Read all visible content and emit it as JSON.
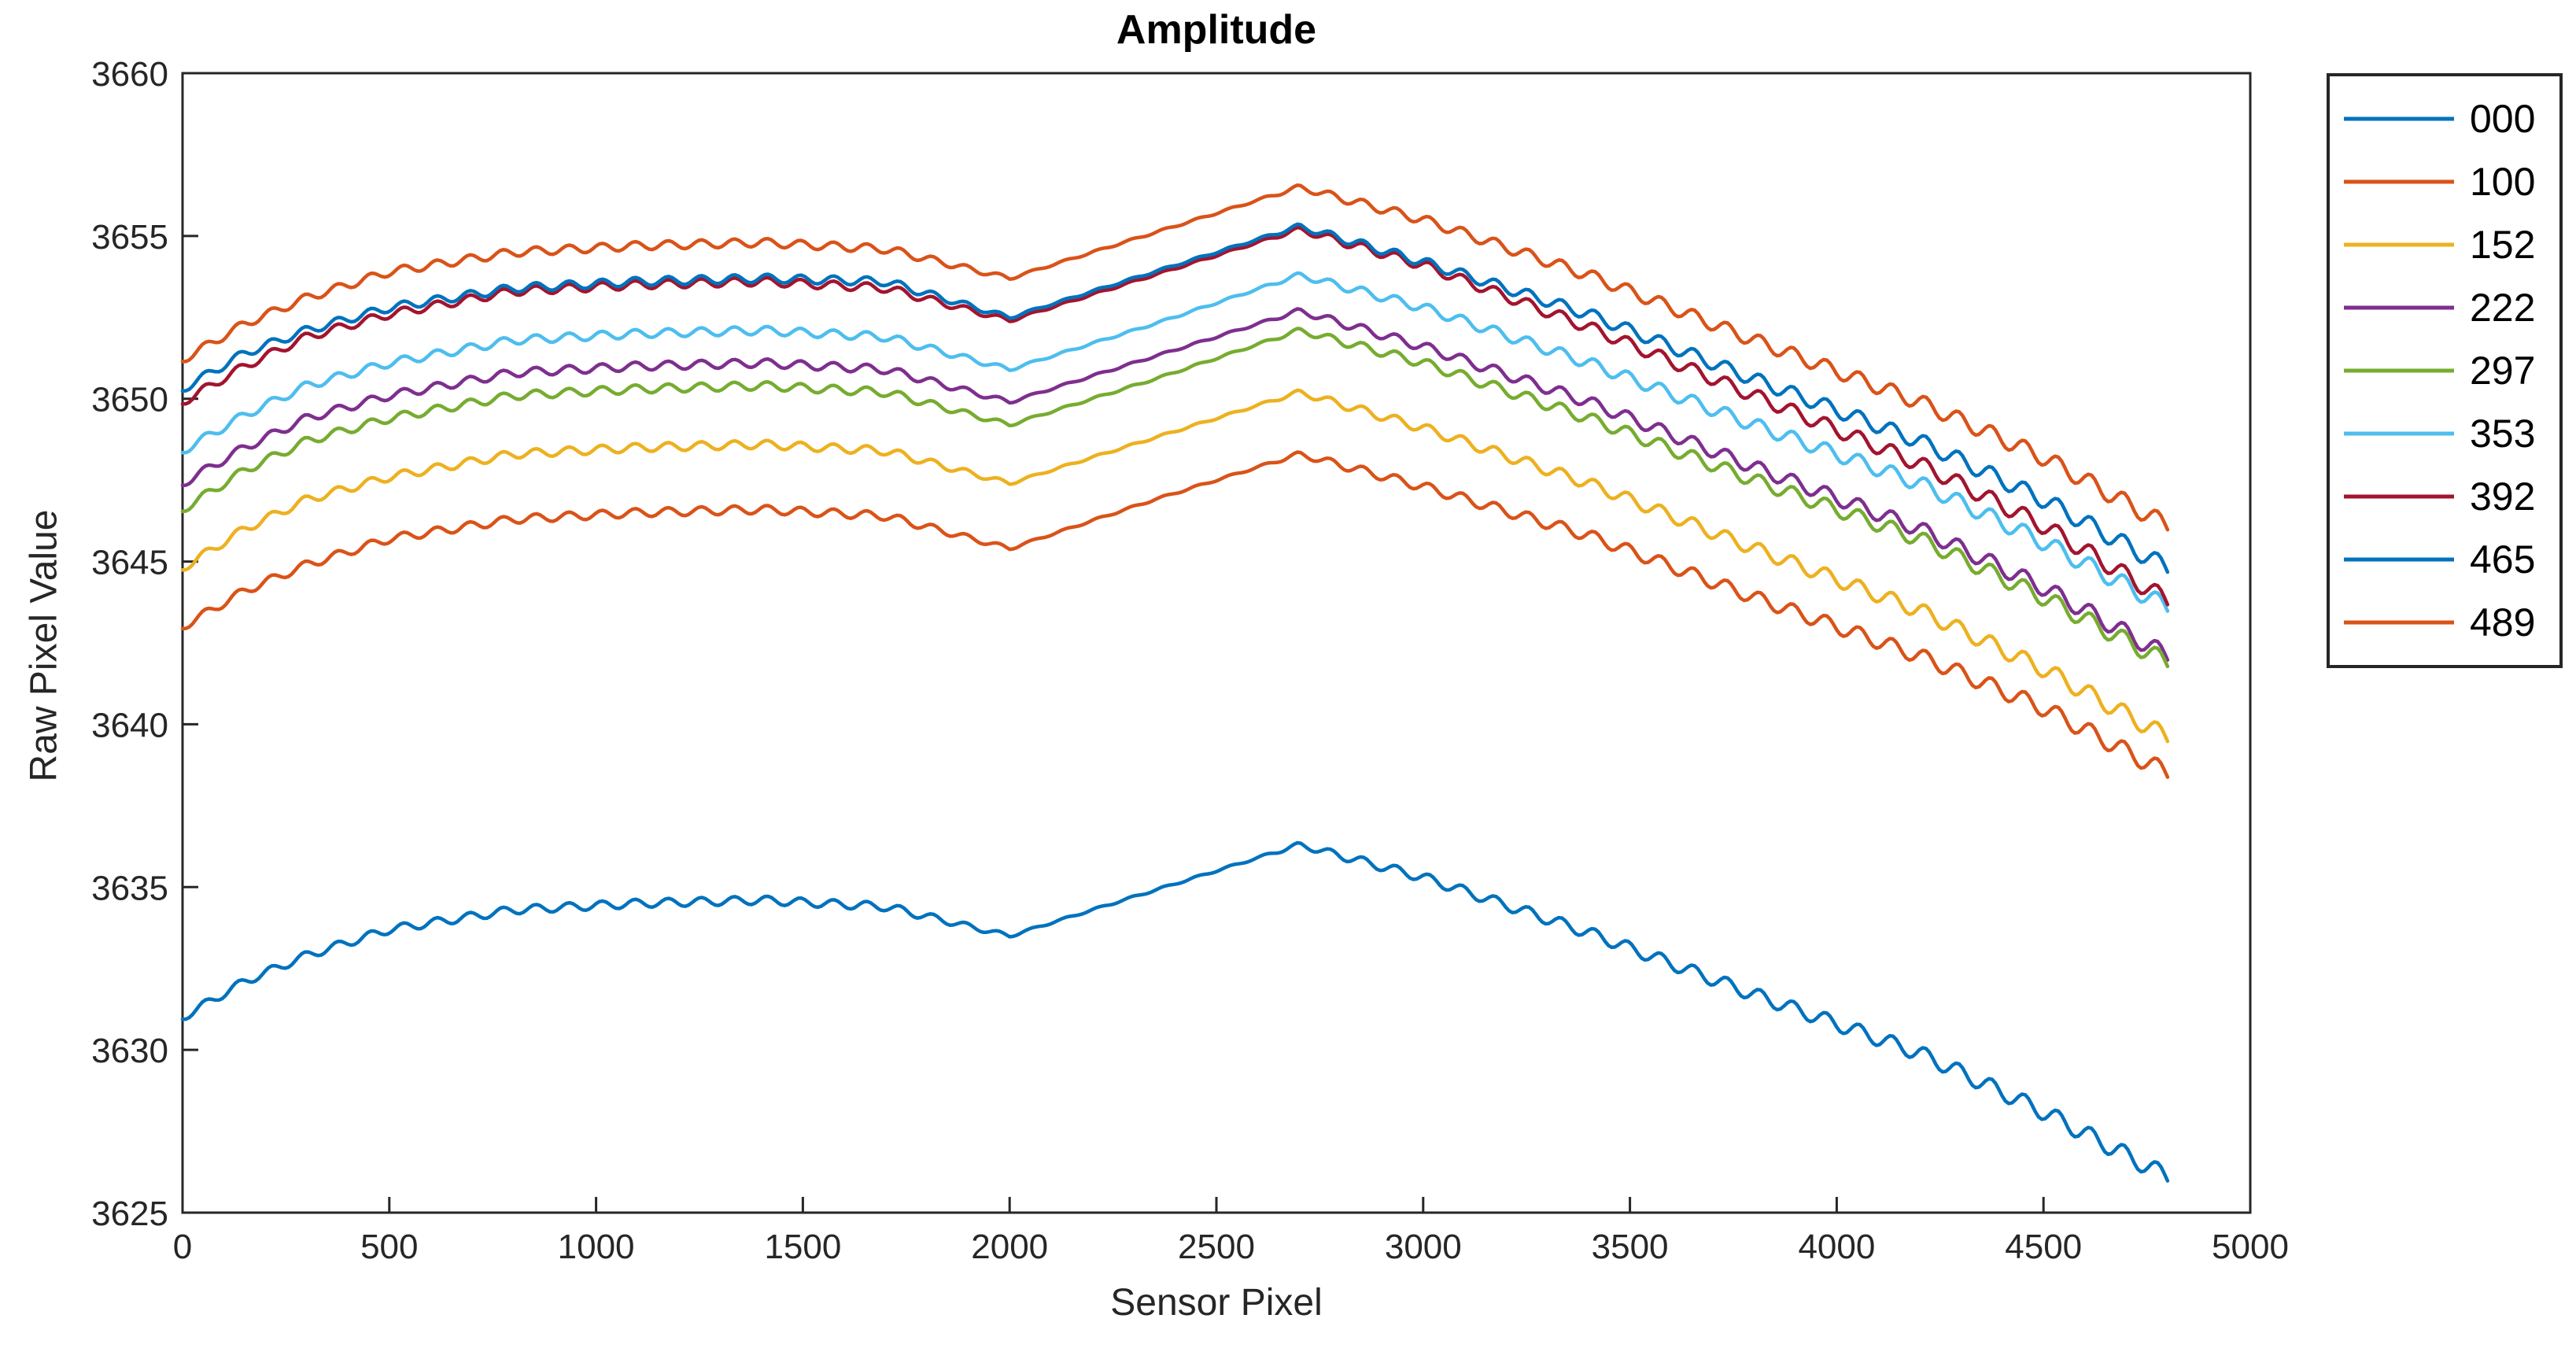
{
  "figure": {
    "title": "Amplitude",
    "xlabel": "Sensor Pixel",
    "ylabel": "Raw Pixel Value"
  },
  "chart_data": {
    "type": "line",
    "title": "Amplitude",
    "xlabel": "Sensor Pixel",
    "ylabel": "Raw Pixel Value",
    "xlim": [
      0,
      5000
    ],
    "ylim": [
      3625,
      3660
    ],
    "xticks": [
      0,
      500,
      1000,
      1500,
      2000,
      2500,
      3000,
      3500,
      4000,
      4500,
      5000
    ],
    "yticks": [
      3625,
      3630,
      3635,
      3640,
      3645,
      3650,
      3655,
      3660
    ],
    "grid": false,
    "legend_position": "outside-right",
    "axis_color": "#262626",
    "x_data_range": [
      0,
      4800
    ],
    "anchor_x": [
      0,
      150,
      300,
      500,
      800,
      1100,
      1400,
      1700,
      2000,
      2350,
      2700,
      3000,
      3400,
      3800,
      4200,
      4500,
      4800
    ],
    "ripple": {
      "period": 80,
      "phase": 3.6,
      "amp_points": [
        [
          0,
          0.13
        ],
        [
          1750,
          0.13
        ],
        [
          1980,
          0.07
        ],
        [
          2050,
          0.03
        ],
        [
          2600,
          0.03
        ],
        [
          2800,
          0.13
        ],
        [
          3600,
          0.2
        ],
        [
          4800,
          0.28
        ]
      ]
    },
    "series": [
      {
        "name": "000",
        "color": "#0072BD",
        "trend": [
          3631.0,
          3632.1,
          3632.9,
          3633.7,
          3634.3,
          3634.5,
          3634.6,
          3634.4,
          3633.5,
          3634.9,
          3636.3,
          3635.3,
          3633.6,
          3631.7,
          3629.9,
          3628.1,
          3626.1
        ]
      },
      {
        "name": "100",
        "color": "#D95319",
        "trend": [
          3643.0,
          3644.1,
          3644.9,
          3645.7,
          3646.3,
          3646.5,
          3646.6,
          3646.4,
          3645.4,
          3646.9,
          3648.3,
          3647.3,
          3645.8,
          3643.9,
          3642.1,
          3640.5,
          3638.5
        ]
      },
      {
        "name": "152",
        "color": "#EDB120",
        "trend": [
          3644.8,
          3646.0,
          3646.9,
          3647.6,
          3648.3,
          3648.5,
          3648.6,
          3648.4,
          3647.4,
          3648.8,
          3650.2,
          3649.1,
          3647.4,
          3645.4,
          3643.5,
          3641.7,
          3639.6
        ]
      },
      {
        "name": "222",
        "color": "#7E2F8E",
        "trend": [
          3647.4,
          3648.5,
          3649.4,
          3650.1,
          3650.8,
          3651.0,
          3651.1,
          3650.9,
          3649.9,
          3651.3,
          3652.7,
          3651.6,
          3649.9,
          3647.9,
          3646.0,
          3644.2,
          3642.1
        ]
      },
      {
        "name": "297",
        "color": "#77AC30",
        "trend": [
          3646.6,
          3647.8,
          3648.7,
          3649.4,
          3650.1,
          3650.3,
          3650.4,
          3650.2,
          3649.2,
          3650.6,
          3652.1,
          3651.1,
          3649.4,
          3647.5,
          3645.7,
          3643.9,
          3641.9
        ]
      },
      {
        "name": "353",
        "color": "#4DBEEE",
        "trend": [
          3648.4,
          3649.5,
          3650.4,
          3651.1,
          3651.8,
          3652.0,
          3652.1,
          3651.9,
          3650.9,
          3652.3,
          3653.8,
          3652.8,
          3651.1,
          3649.2,
          3647.4,
          3645.6,
          3643.6
        ]
      },
      {
        "name": "392",
        "color": "#A2142F",
        "trend": [
          3649.9,
          3651.0,
          3651.9,
          3652.6,
          3653.3,
          3653.5,
          3653.6,
          3653.4,
          3652.4,
          3653.8,
          3655.2,
          3654.1,
          3652.2,
          3650.1,
          3648.0,
          3646.1,
          3643.8
        ]
      },
      {
        "name": "465",
        "color": "#0072BD",
        "trend": [
          3650.3,
          3651.4,
          3652.1,
          3652.8,
          3653.4,
          3653.6,
          3653.7,
          3653.6,
          3652.5,
          3653.9,
          3655.3,
          3654.2,
          3652.6,
          3650.6,
          3648.7,
          3646.9,
          3644.8
        ]
      },
      {
        "name": "489",
        "color": "#D95319",
        "trend": [
          3651.2,
          3652.3,
          3653.1,
          3653.9,
          3654.5,
          3654.7,
          3654.8,
          3654.6,
          3653.7,
          3655.1,
          3656.5,
          3655.5,
          3653.8,
          3651.8,
          3649.9,
          3648.2,
          3646.1
        ]
      }
    ]
  }
}
